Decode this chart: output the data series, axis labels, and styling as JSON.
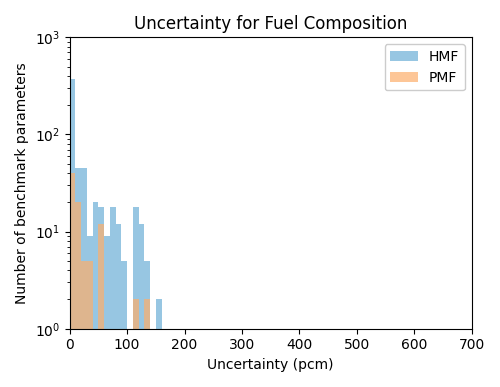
{
  "title": "Uncertainty for Fuel Composition",
  "xlabel": "Uncertainty (pcm)",
  "ylabel": "Number of benchmark parameters",
  "xlim": [
    0,
    700
  ],
  "ylim_log": [
    1,
    1000
  ],
  "bin_edges": [
    0,
    10,
    20,
    30,
    40,
    50,
    60,
    70,
    80,
    90,
    100,
    110,
    120,
    130,
    140,
    150,
    160,
    170,
    180,
    190,
    200
  ],
  "hmf_counts": [
    370,
    45,
    45,
    9,
    20,
    18,
    9,
    18,
    12,
    5,
    1,
    18,
    12,
    5,
    0,
    2,
    0,
    0,
    0,
    0
  ],
  "pmf_counts": [
    40,
    20,
    5,
    5,
    0,
    12,
    0,
    0,
    0,
    0,
    0,
    2,
    0,
    2,
    0,
    0,
    0,
    0,
    0,
    0
  ],
  "hmf_color": "#6baed6",
  "pmf_color": "#fdae6b",
  "hmf_alpha": 0.7,
  "pmf_alpha": 0.7,
  "legend_labels": [
    "HMF",
    "PMF"
  ],
  "xticks": [
    0,
    100,
    200,
    300,
    400,
    500,
    600,
    700
  ],
  "background_color": "#ffffff"
}
